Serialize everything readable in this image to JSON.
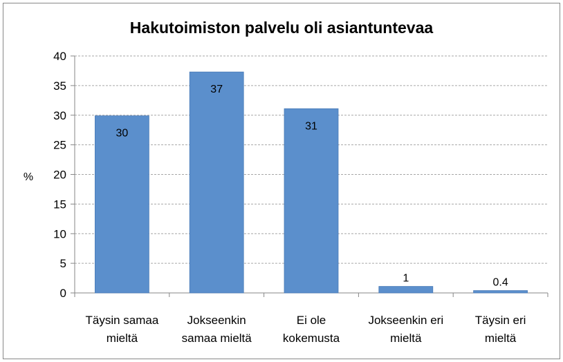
{
  "chart_data": {
    "type": "bar",
    "title": "Hakutoimiston palvelu oli asiantuntevaa",
    "ylabel": "%",
    "xlabel": "",
    "categories": [
      [
        "Täysin samaa",
        "mieltä"
      ],
      [
        "Jokseenkin",
        "samaa mieltä"
      ],
      [
        "Ei ole",
        "kokemusta"
      ],
      [
        "Jokseenkin eri",
        "mieltä"
      ],
      [
        "Täysin eri",
        "mieltä"
      ]
    ],
    "values": [
      29.9,
      37.3,
      31.1,
      1.1,
      0.4
    ],
    "data_labels": [
      "30",
      "37",
      "31",
      "1",
      "0.4"
    ],
    "ylim": [
      0,
      40
    ],
    "yticks": [
      0,
      5,
      10,
      15,
      20,
      25,
      30,
      35,
      40
    ],
    "grid": true,
    "legend": "none",
    "colors": {
      "bar": "#5b8fcc",
      "bar_edge": "#4a7bb7",
      "grid": "#a6a6a6",
      "axis": "#868686"
    }
  }
}
